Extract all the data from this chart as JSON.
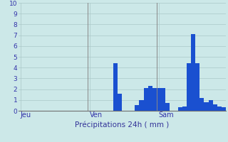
{
  "xlabel": "Précipitations 24h ( mm )",
  "background_color": "#cce8e8",
  "bar_color": "#1a50d0",
  "ylim": [
    0,
    10
  ],
  "yticks": [
    0,
    1,
    2,
    3,
    4,
    5,
    6,
    7,
    8,
    9,
    10
  ],
  "day_labels": [
    "Jeu",
    "Ven",
    "Sam"
  ],
  "grid_color": "#aac8c8",
  "values": [
    0,
    0,
    0,
    0,
    0,
    0,
    0,
    0,
    0,
    0,
    0,
    0,
    0,
    0,
    0,
    0,
    0,
    0,
    0,
    0,
    0,
    0,
    4.4,
    1.6,
    0,
    0,
    0,
    0.5,
    1.0,
    2.1,
    2.3,
    2.1,
    2.1,
    2.1,
    0.7,
    0,
    0,
    0.3,
    0.4,
    4.4,
    7.1,
    4.4,
    1.2,
    0.8,
    1.0,
    0.6,
    0.4,
    0.3
  ],
  "n_per_day": 16,
  "vline_color": "#888888",
  "tick_color": "#3333aa",
  "xlabel_color": "#333399",
  "xlabel_size": 7.5,
  "ytick_size": 6.5
}
